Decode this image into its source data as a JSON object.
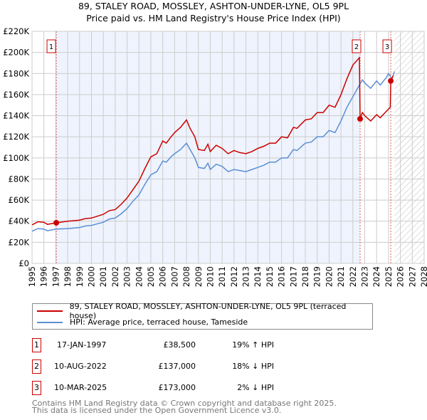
{
  "chart_data": {
    "type": "line",
    "title": "89, STALEY ROAD, MOSSLEY, ASHTON-UNDER-LYNE, OL5 9PL",
    "subtitle": "Price paid vs. HM Land Registry's House Price Index (HPI)",
    "xlim": [
      1995,
      2028
    ],
    "ylim": [
      0,
      220000
    ],
    "x_ticks": [
      "1995",
      "1996",
      "1997",
      "1998",
      "1999",
      "2000",
      "2001",
      "2002",
      "2003",
      "2004",
      "2005",
      "2006",
      "2007",
      "2008",
      "2009",
      "2010",
      "2011",
      "2012",
      "2013",
      "2014",
      "2015",
      "2016",
      "2017",
      "2018",
      "2019",
      "2020",
      "2021",
      "2022",
      "2023",
      "2024",
      "2025",
      "2026",
      "2027",
      "2028"
    ],
    "y_ticks": [
      "£0",
      "£20K",
      "£40K",
      "£60K",
      "£80K",
      "£100K",
      "£120K",
      "£140K",
      "£160K",
      "£180K",
      "£200K",
      "£220K"
    ],
    "grid": true,
    "series": [
      {
        "name": "89, STALEY ROAD, MOSSLEY, ASHTON-UNDER-LYNE, OL5 9PL (terraced house)",
        "color": "#cc0000",
        "x": [
          1995,
          1995.5,
          1996,
          1996.3,
          1997.04,
          1998,
          1999,
          1999.5,
          2000,
          2001,
          2001.5,
          2002,
          2002.5,
          2003,
          2003.5,
          2004,
          2004.5,
          2005,
          2005.5,
          2006,
          2006.3,
          2006.7,
          2007,
          2007.5,
          2008,
          2008.3,
          2008.7,
          2009,
          2009.5,
          2009.8,
          2010,
          2010.5,
          2011,
          2011.5,
          2012,
          2012.5,
          2013,
          2013.5,
          2014,
          2014.5,
          2015,
          2015.5,
          2016,
          2016.5,
          2017,
          2017.3,
          2018,
          2018.5,
          2019,
          2019.5,
          2020,
          2020.5,
          2021,
          2021.5,
          2022,
          2022.55,
          2022.61,
          2022.8,
          2023,
          2023.5,
          2024,
          2024.3,
          2024.8,
          2025.15,
          2025.19,
          2025.4
        ],
        "y": [
          36500,
          39500,
          39000,
          37000,
          38500,
          40000,
          41000,
          42500,
          43000,
          46500,
          50000,
          51000,
          56000,
          62000,
          70000,
          78000,
          90000,
          101000,
          104000,
          116000,
          114000,
          120000,
          124000,
          129000,
          136000,
          128000,
          120000,
          108000,
          107000,
          113000,
          106000,
          112000,
          109000,
          104000,
          107000,
          105000,
          104000,
          106000,
          109000,
          111000,
          114000,
          114000,
          120000,
          119000,
          129000,
          128000,
          136000,
          137000,
          143000,
          143000,
          150000,
          148000,
          160000,
          175000,
          188000,
          195000,
          137000,
          143000,
          140000,
          135000,
          141000,
          138000,
          144000,
          148000,
          173000,
          178000
        ]
      },
      {
        "name": "HPI: Average price, terraced house, Tameside",
        "color": "#5b8fd4",
        "x": [
          1995,
          1995.5,
          1996,
          1996.3,
          1997,
          1998,
          1999,
          1999.5,
          2000,
          2001,
          2001.5,
          2002,
          2002.5,
          2003,
          2003.5,
          2004,
          2004.5,
          2005,
          2005.5,
          2006,
          2006.3,
          2006.7,
          2007,
          2007.5,
          2008,
          2008.3,
          2008.7,
          2009,
          2009.5,
          2009.8,
          2010,
          2010.5,
          2011,
          2011.5,
          2012,
          2012.5,
          2013,
          2013.5,
          2014,
          2014.5,
          2015,
          2015.5,
          2016,
          2016.5,
          2017,
          2017.3,
          2018,
          2018.5,
          2019,
          2019.5,
          2020,
          2020.5,
          2021,
          2021.5,
          2022,
          2022.5,
          2022.8,
          2023,
          2023.5,
          2024,
          2024.3,
          2024.8,
          2025,
          2025.3,
          2025.5
        ],
        "y": [
          30500,
          33000,
          32500,
          31000,
          32500,
          33000,
          34000,
          35500,
          36000,
          39000,
          42000,
          43000,
          47000,
          52000,
          59000,
          65000,
          75000,
          84000,
          87000,
          97000,
          96000,
          101000,
          104000,
          108000,
          114000,
          108000,
          100000,
          91000,
          90000,
          95000,
          89000,
          94000,
          92000,
          87000,
          89000,
          88000,
          87000,
          89000,
          91000,
          93000,
          96000,
          96000,
          100000,
          100000,
          108000,
          107000,
          114000,
          115000,
          120000,
          120000,
          126000,
          124000,
          135000,
          148000,
          158000,
          168000,
          174000,
          171000,
          166000,
          173000,
          169000,
          176000,
          180000,
          175000,
          182000
        ]
      }
    ],
    "annotations": [
      {
        "label": "1",
        "x": 1997.04,
        "y": 38500
      },
      {
        "label": "2",
        "x": 2022.61,
        "y": 137000
      },
      {
        "label": "3",
        "x": 2025.19,
        "y": 173000
      }
    ],
    "shaded_range": [
      1997.04,
      2022.61
    ],
    "forecast_hatch_from": 2025.5,
    "legend_placement": "below"
  },
  "sales": [
    {
      "num": "1",
      "date": "17-JAN-1997",
      "price": "£38,500",
      "hpi": "19% ↑ HPI"
    },
    {
      "num": "2",
      "date": "10-AUG-2022",
      "price": "£137,000",
      "hpi": "18% ↓ HPI"
    },
    {
      "num": "3",
      "date": "10-MAR-2025",
      "price": "£173,000",
      "hpi": "2% ↓ HPI"
    }
  ],
  "footer": [
    "Contains HM Land Registry data © Crown copyright and database right 2025.",
    "This data is licensed under the Open Government Licence v3.0."
  ]
}
